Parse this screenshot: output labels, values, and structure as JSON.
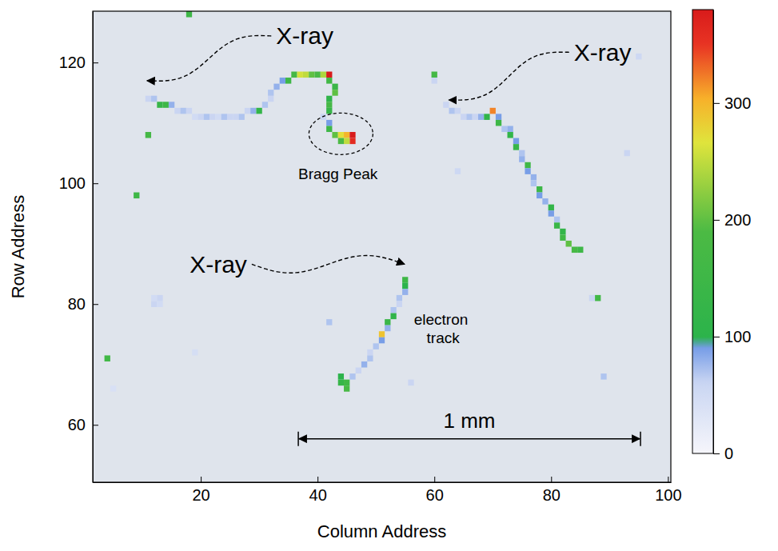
{
  "chart_data": {
    "type": "heatmap",
    "xlabel": "Column Address",
    "ylabel": "Row Address",
    "xlim": [
      1.5,
      100.5
    ],
    "ylim": [
      50.5,
      128.5
    ],
    "xticks": [
      20,
      40,
      60,
      80,
      100
    ],
    "yticks": [
      60,
      80,
      100,
      120
    ],
    "colorbar": {
      "range": [
        0,
        380
      ],
      "ticks": [
        0,
        100,
        200,
        300
      ]
    },
    "cells": [
      [
        11,
        114,
        60
      ],
      [
        12,
        114,
        70
      ],
      [
        13,
        113,
        130
      ],
      [
        14,
        113,
        150
      ],
      [
        15,
        113,
        80
      ],
      [
        16,
        112,
        60
      ],
      [
        17,
        112,
        70
      ],
      [
        18,
        112,
        60
      ],
      [
        19,
        111,
        50
      ],
      [
        20,
        111,
        60
      ],
      [
        21,
        111,
        70
      ],
      [
        22,
        111,
        60
      ],
      [
        23,
        111,
        50
      ],
      [
        24,
        111,
        70
      ],
      [
        25,
        111,
        60
      ],
      [
        26,
        111,
        60
      ],
      [
        27,
        111,
        70
      ],
      [
        28,
        112,
        60
      ],
      [
        29,
        112,
        80
      ],
      [
        30,
        112,
        120
      ],
      [
        31,
        113,
        70
      ],
      [
        32,
        114,
        60
      ],
      [
        32,
        115,
        70
      ],
      [
        33,
        116,
        80
      ],
      [
        34,
        117,
        90
      ],
      [
        35,
        117,
        150
      ],
      [
        36,
        118,
        170
      ],
      [
        37,
        118,
        260
      ],
      [
        38,
        118,
        250
      ],
      [
        39,
        118,
        200
      ],
      [
        40,
        118,
        180
      ],
      [
        41,
        118,
        240
      ],
      [
        42,
        118,
        380
      ],
      [
        42,
        117,
        160
      ],
      [
        43,
        116,
        140
      ],
      [
        43,
        115,
        200
      ],
      [
        42,
        114,
        110
      ],
      [
        42,
        113,
        170
      ],
      [
        42,
        112,
        130
      ],
      [
        41,
        111,
        60
      ],
      [
        42,
        110,
        90
      ],
      [
        42,
        109,
        150
      ],
      [
        43,
        108,
        200
      ],
      [
        44,
        108,
        270
      ],
      [
        45,
        108,
        300
      ],
      [
        46,
        108,
        380
      ],
      [
        46,
        107,
        360
      ],
      [
        45,
        107,
        250
      ],
      [
        44,
        107,
        190
      ],
      [
        62,
        113,
        60
      ],
      [
        63,
        112,
        70
      ],
      [
        64,
        112,
        60
      ],
      [
        65,
        111,
        60
      ],
      [
        66,
        111,
        70
      ],
      [
        67,
        111,
        60
      ],
      [
        68,
        111,
        80
      ],
      [
        69,
        111,
        110
      ],
      [
        70,
        112,
        320
      ],
      [
        71,
        111,
        90
      ],
      [
        71,
        110,
        150
      ],
      [
        72,
        109,
        70
      ],
      [
        73,
        109,
        80
      ],
      [
        73,
        108,
        120
      ],
      [
        74,
        107,
        90
      ],
      [
        74,
        106,
        130
      ],
      [
        75,
        105,
        70
      ],
      [
        75,
        104,
        80
      ],
      [
        76,
        103,
        160
      ],
      [
        76,
        102,
        90
      ],
      [
        77,
        101,
        80
      ],
      [
        77,
        100,
        70
      ],
      [
        78,
        99,
        150
      ],
      [
        78,
        98,
        90
      ],
      [
        79,
        97,
        80
      ],
      [
        80,
        96,
        120
      ],
      [
        80,
        95,
        90
      ],
      [
        81,
        94,
        70
      ],
      [
        81,
        93,
        140
      ],
      [
        82,
        92,
        120
      ],
      [
        82,
        91,
        160
      ],
      [
        83,
        90,
        200
      ],
      [
        84,
        89,
        180
      ],
      [
        85,
        89,
        150
      ],
      [
        55,
        84,
        150
      ],
      [
        55,
        83,
        100
      ],
      [
        55,
        82,
        80
      ],
      [
        54,
        81,
        70
      ],
      [
        54,
        80,
        60
      ],
      [
        53,
        79,
        70
      ],
      [
        53,
        78,
        110
      ],
      [
        52,
        77,
        140
      ],
      [
        52,
        76,
        80
      ],
      [
        51,
        75,
        290
      ],
      [
        51,
        74,
        90
      ],
      [
        50,
        73,
        70
      ],
      [
        49,
        72,
        60
      ],
      [
        49,
        71,
        70
      ],
      [
        48,
        70,
        80
      ],
      [
        47,
        69,
        60
      ],
      [
        46,
        68,
        70
      ],
      [
        45,
        67,
        160
      ],
      [
        44,
        67,
        130
      ],
      [
        45,
        66,
        180
      ],
      [
        44,
        68,
        100
      ],
      [
        18,
        128,
        150
      ],
      [
        11,
        108,
        170
      ],
      [
        9,
        98,
        150
      ],
      [
        4,
        71,
        160
      ],
      [
        12,
        80,
        60
      ],
      [
        13,
        80,
        50
      ],
      [
        12,
        81,
        50
      ],
      [
        13,
        81,
        60
      ],
      [
        19,
        72,
        45
      ],
      [
        5,
        66,
        40
      ],
      [
        60,
        118,
        170
      ],
      [
        60,
        117,
        60
      ],
      [
        64,
        102,
        55
      ],
      [
        88,
        81,
        160
      ],
      [
        87,
        81,
        60
      ],
      [
        89,
        68,
        70
      ],
      [
        95,
        121,
        55
      ],
      [
        93,
        105,
        60
      ],
      [
        42,
        77,
        70
      ],
      [
        56,
        67,
        60
      ]
    ],
    "annotations": [
      {
        "text": "X-ray",
        "x": 37.8,
        "y": 124.4,
        "arrow_to": [
          10.8,
          117
        ]
      },
      {
        "text": "X-ray",
        "x": 88.8,
        "y": 121.7,
        "arrow_to": [
          62.5,
          113.8
        ]
      },
      {
        "text": "X-ray",
        "x": 23,
        "y": 86.6,
        "arrow_to": [
          54.9,
          86.6
        ]
      },
      {
        "text": "Bragg Peak",
        "x": 43.5,
        "y": 101.5,
        "highlight": [
          44,
          108.2
        ]
      },
      {
        "text": "electron track",
        "x": 61.5,
        "y": 76
      }
    ],
    "scale_bar": {
      "label": "1 mm",
      "x": [
        36.7,
        95.3
      ],
      "y": 57.7
    }
  }
}
